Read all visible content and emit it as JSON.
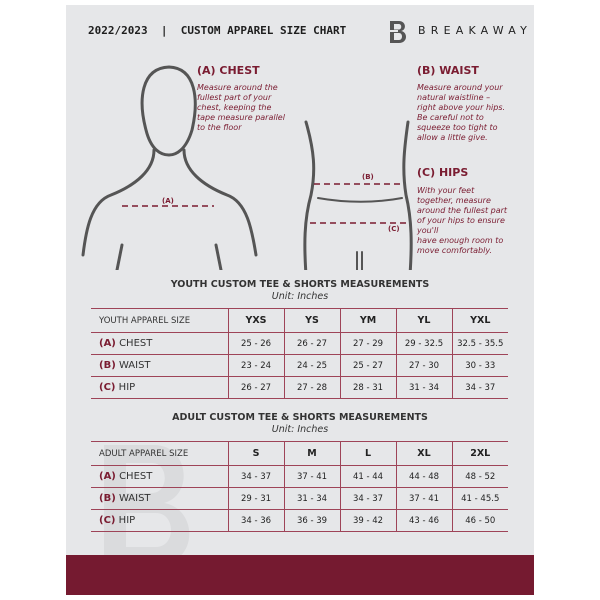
{
  "header": {
    "title": "2022/2023  |  CUSTOM APPAREL SIZE CHART",
    "brand": "BREAKAWAY",
    "logo_letter": "B"
  },
  "guide": {
    "chest": {
      "heading": "(A) CHEST",
      "marker": "(A)",
      "text": "Measure around the\nfullest part of your\nchest, keeping the\ntape measure parallel\nto the floor"
    },
    "waist": {
      "heading": "(B) WAIST",
      "marker": "(B)",
      "text": "Measure around your\nnatural waistline –\nright above your hips.\nBe careful not to\nsqueeze too tight to\nallow a little give."
    },
    "hips": {
      "heading": "(C) HIPS",
      "marker": "(C)",
      "text": "With your feet\ntogether, measure\naround the fullest part\nof your hips to ensure\nyou'll\nhave enough room to\nmove comfortably."
    }
  },
  "youth": {
    "title": "YOUTH CUSTOM TEE & SHORTS MEASUREMENTS",
    "unit": "Unit: Inches",
    "size_label": "YOUTH APPAREL SIZE",
    "sizes": [
      "YXS",
      "YS",
      "YM",
      "YL",
      "YXL"
    ],
    "rows": [
      {
        "tag": "(A)",
        "label": "CHEST",
        "values": [
          "25 - 26",
          "26 - 27",
          "27 - 29",
          "29 - 32.5",
          "32.5 - 35.5"
        ]
      },
      {
        "tag": "(B)",
        "label": "WAIST",
        "values": [
          "23 - 24",
          "24 - 25",
          "25 - 27",
          "27 - 30",
          "30 - 33"
        ]
      },
      {
        "tag": "(C)",
        "label": "HIP",
        "values": [
          "26 - 27",
          "27 - 28",
          "28 - 31",
          "31 - 34",
          "34 - 37"
        ]
      }
    ]
  },
  "adult": {
    "title": "ADULT CUSTOM TEE & SHORTS MEASUREMENTS",
    "unit": "Unit: Inches",
    "size_label": "ADULT APPAREL SIZE",
    "sizes": [
      "S",
      "M",
      "L",
      "XL",
      "2XL"
    ],
    "rows": [
      {
        "tag": "(A)",
        "label": "CHEST",
        "values": [
          "34 - 37",
          "37 - 41",
          "41 - 44",
          "44 - 48",
          "48 - 52"
        ]
      },
      {
        "tag": "(B)",
        "label": "WAIST",
        "values": [
          "29 - 31",
          "31 - 34",
          "34 - 37",
          "37 - 41",
          "41 - 45.5"
        ]
      },
      {
        "tag": "(C)",
        "label": "HIP",
        "values": [
          "34 - 36",
          "36 - 39",
          "39 - 42",
          "43 - 46",
          "46 - 50"
        ]
      }
    ]
  },
  "colors": {
    "accent": "#751a30",
    "background": "#e6e7e9"
  }
}
